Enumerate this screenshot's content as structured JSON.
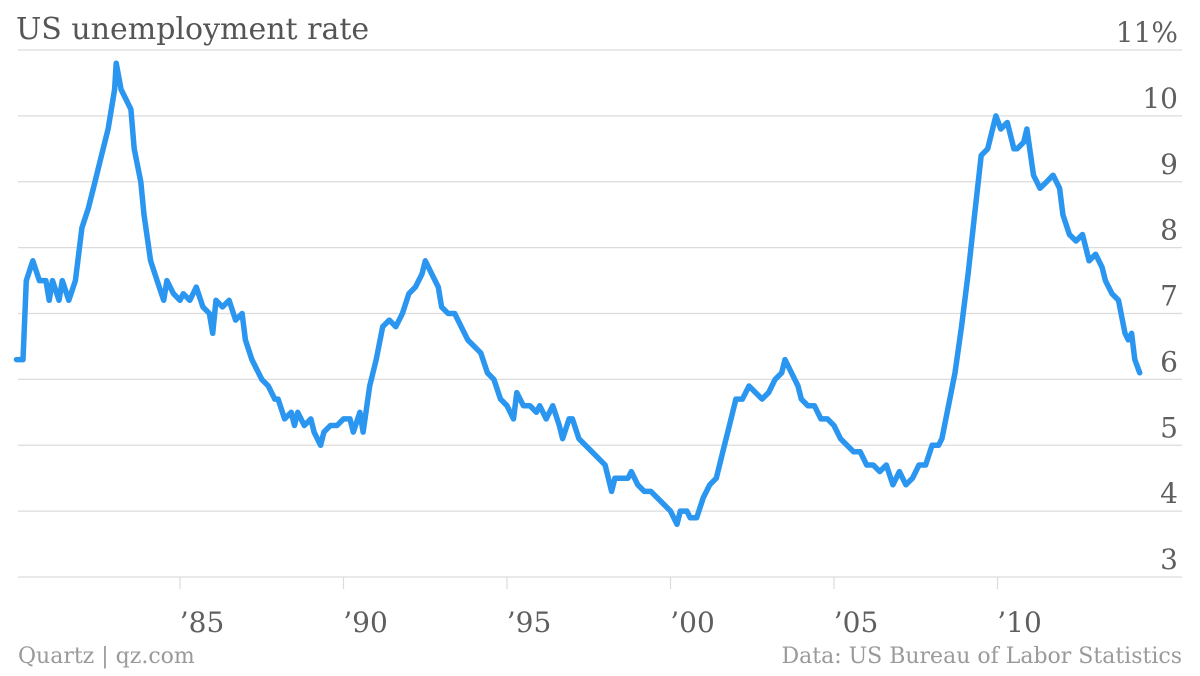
{
  "title": "US unemployment rate",
  "footer": {
    "source_left": "Quartz | qz.com",
    "source_right": "Data: US Bureau of Labor Statistics"
  },
  "colors": {
    "line": "#2A96F0",
    "grid": "#dcdcdc",
    "text": "#5f5f5f",
    "footer": "#9a9a9a"
  },
  "chart_data": {
    "type": "line",
    "title": "US unemployment rate",
    "xlabel": "",
    "ylabel": "",
    "xlim": [
      1980.0,
      2014.4
    ],
    "ylim": [
      3,
      11
    ],
    "grid": true,
    "y_ticks": [
      {
        "value": 11,
        "label": "11%"
      },
      {
        "value": 10,
        "label": "10"
      },
      {
        "value": 9,
        "label": "9"
      },
      {
        "value": 8,
        "label": "8"
      },
      {
        "value": 7,
        "label": "7"
      },
      {
        "value": 6,
        "label": "6"
      },
      {
        "value": 5,
        "label": "5"
      },
      {
        "value": 4,
        "label": "4"
      },
      {
        "value": 3,
        "label": "3"
      }
    ],
    "x_ticks": [
      {
        "value": 1985,
        "label": "’85"
      },
      {
        "value": 1990,
        "label": "’90"
      },
      {
        "value": 1995,
        "label": "’95"
      },
      {
        "value": 2000,
        "label": "’00"
      },
      {
        "value": 2005,
        "label": "’05"
      },
      {
        "value": 2010,
        "label": "’10"
      }
    ],
    "series": [
      {
        "points": [
          [
            1980.0,
            6.3
          ],
          [
            1980.2,
            6.3
          ],
          [
            1980.3,
            7.5
          ],
          [
            1980.5,
            7.8
          ],
          [
            1980.7,
            7.5
          ],
          [
            1980.9,
            7.5
          ],
          [
            1981.0,
            7.2
          ],
          [
            1981.1,
            7.5
          ],
          [
            1981.3,
            7.2
          ],
          [
            1981.4,
            7.5
          ],
          [
            1981.6,
            7.2
          ],
          [
            1981.8,
            7.5
          ],
          [
            1982.0,
            8.3
          ],
          [
            1982.2,
            8.6
          ],
          [
            1982.4,
            9.0
          ],
          [
            1982.6,
            9.4
          ],
          [
            1982.8,
            9.8
          ],
          [
            1983.0,
            10.4
          ],
          [
            1983.05,
            10.8
          ],
          [
            1983.2,
            10.4
          ],
          [
            1983.3,
            10.3
          ],
          [
            1983.5,
            10.1
          ],
          [
            1983.6,
            9.5
          ],
          [
            1983.8,
            9.0
          ],
          [
            1983.9,
            8.5
          ],
          [
            1984.1,
            7.8
          ],
          [
            1984.3,
            7.5
          ],
          [
            1984.5,
            7.2
          ],
          [
            1984.6,
            7.5
          ],
          [
            1984.8,
            7.3
          ],
          [
            1985.0,
            7.2
          ],
          [
            1985.1,
            7.3
          ],
          [
            1985.3,
            7.2
          ],
          [
            1985.4,
            7.3
          ],
          [
            1985.5,
            7.4
          ],
          [
            1985.7,
            7.1
          ],
          [
            1985.9,
            7.0
          ],
          [
            1986.0,
            6.7
          ],
          [
            1986.1,
            7.2
          ],
          [
            1986.3,
            7.1
          ],
          [
            1986.5,
            7.2
          ],
          [
            1986.7,
            6.9
          ],
          [
            1986.9,
            7.0
          ],
          [
            1987.0,
            6.6
          ],
          [
            1987.2,
            6.3
          ],
          [
            1987.5,
            6.0
          ],
          [
            1987.7,
            5.9
          ],
          [
            1987.9,
            5.7
          ],
          [
            1988.0,
            5.7
          ],
          [
            1988.2,
            5.4
          ],
          [
            1988.4,
            5.5
          ],
          [
            1988.5,
            5.3
          ],
          [
            1988.6,
            5.5
          ],
          [
            1988.8,
            5.3
          ],
          [
            1989.0,
            5.4
          ],
          [
            1989.1,
            5.2
          ],
          [
            1989.3,
            5.0
          ],
          [
            1989.4,
            5.2
          ],
          [
            1989.6,
            5.3
          ],
          [
            1989.8,
            5.3
          ],
          [
            1990.0,
            5.4
          ],
          [
            1990.2,
            5.4
          ],
          [
            1990.3,
            5.2
          ],
          [
            1990.5,
            5.5
          ],
          [
            1990.6,
            5.2
          ],
          [
            1990.8,
            5.9
          ],
          [
            1991.0,
            6.3
          ],
          [
            1991.2,
            6.8
          ],
          [
            1991.4,
            6.9
          ],
          [
            1991.6,
            6.8
          ],
          [
            1991.8,
            7.0
          ],
          [
            1992.0,
            7.3
          ],
          [
            1992.2,
            7.4
          ],
          [
            1992.4,
            7.6
          ],
          [
            1992.5,
            7.8
          ],
          [
            1992.7,
            7.6
          ],
          [
            1992.9,
            7.4
          ],
          [
            1993.0,
            7.1
          ],
          [
            1993.2,
            7.0
          ],
          [
            1993.4,
            7.0
          ],
          [
            1993.6,
            6.8
          ],
          [
            1993.8,
            6.6
          ],
          [
            1994.0,
            6.5
          ],
          [
            1994.2,
            6.4
          ],
          [
            1994.4,
            6.1
          ],
          [
            1994.6,
            6.0
          ],
          [
            1994.8,
            5.7
          ],
          [
            1995.0,
            5.6
          ],
          [
            1995.2,
            5.4
          ],
          [
            1995.3,
            5.8
          ],
          [
            1995.5,
            5.6
          ],
          [
            1995.7,
            5.6
          ],
          [
            1995.9,
            5.5
          ],
          [
            1996.0,
            5.6
          ],
          [
            1996.2,
            5.4
          ],
          [
            1996.4,
            5.6
          ],
          [
            1996.6,
            5.3
          ],
          [
            1996.7,
            5.1
          ],
          [
            1996.9,
            5.4
          ],
          [
            1997.0,
            5.4
          ],
          [
            1997.2,
            5.1
          ],
          [
            1997.4,
            5.0
          ],
          [
            1997.6,
            4.9
          ],
          [
            1997.8,
            4.8
          ],
          [
            1998.0,
            4.7
          ],
          [
            1998.2,
            4.3
          ],
          [
            1998.3,
            4.5
          ],
          [
            1998.5,
            4.5
          ],
          [
            1998.7,
            4.5
          ],
          [
            1998.8,
            4.6
          ],
          [
            1999.0,
            4.4
          ],
          [
            1999.2,
            4.3
          ],
          [
            1999.4,
            4.3
          ],
          [
            1999.6,
            4.2
          ],
          [
            1999.8,
            4.1
          ],
          [
            2000.0,
            4.0
          ],
          [
            2000.2,
            3.8
          ],
          [
            2000.3,
            4.0
          ],
          [
            2000.5,
            4.0
          ],
          [
            2000.6,
            3.9
          ],
          [
            2000.8,
            3.9
          ],
          [
            2001.0,
            4.2
          ],
          [
            2001.2,
            4.4
          ],
          [
            2001.4,
            4.5
          ],
          [
            2001.6,
            4.9
          ],
          [
            2001.8,
            5.3
          ],
          [
            2002.0,
            5.7
          ],
          [
            2002.2,
            5.7
          ],
          [
            2002.4,
            5.9
          ],
          [
            2002.6,
            5.8
          ],
          [
            2002.8,
            5.7
          ],
          [
            2003.0,
            5.8
          ],
          [
            2003.2,
            6.0
          ],
          [
            2003.4,
            6.1
          ],
          [
            2003.5,
            6.3
          ],
          [
            2003.7,
            6.1
          ],
          [
            2003.9,
            5.9
          ],
          [
            2004.0,
            5.7
          ],
          [
            2004.2,
            5.6
          ],
          [
            2004.4,
            5.6
          ],
          [
            2004.6,
            5.4
          ],
          [
            2004.8,
            5.4
          ],
          [
            2005.0,
            5.3
          ],
          [
            2005.2,
            5.1
          ],
          [
            2005.4,
            5.0
          ],
          [
            2005.6,
            4.9
          ],
          [
            2005.8,
            4.9
          ],
          [
            2006.0,
            4.7
          ],
          [
            2006.2,
            4.7
          ],
          [
            2006.4,
            4.6
          ],
          [
            2006.6,
            4.7
          ],
          [
            2006.8,
            4.4
          ],
          [
            2007.0,
            4.6
          ],
          [
            2007.2,
            4.4
          ],
          [
            2007.4,
            4.5
          ],
          [
            2007.6,
            4.7
          ],
          [
            2007.8,
            4.7
          ],
          [
            2008.0,
            5.0
          ],
          [
            2008.2,
            5.0
          ],
          [
            2008.3,
            5.1
          ],
          [
            2008.5,
            5.6
          ],
          [
            2008.7,
            6.1
          ],
          [
            2008.9,
            6.8
          ],
          [
            2009.1,
            7.6
          ],
          [
            2009.3,
            8.5
          ],
          [
            2009.5,
            9.4
          ],
          [
            2009.7,
            9.5
          ],
          [
            2009.9,
            9.9
          ],
          [
            2009.95,
            10.0
          ],
          [
            2010.1,
            9.8
          ],
          [
            2010.3,
            9.9
          ],
          [
            2010.5,
            9.5
          ],
          [
            2010.6,
            9.5
          ],
          [
            2010.8,
            9.6
          ],
          [
            2010.9,
            9.8
          ],
          [
            2011.1,
            9.1
          ],
          [
            2011.3,
            8.9
          ],
          [
            2011.5,
            9.0
          ],
          [
            2011.7,
            9.1
          ],
          [
            2011.9,
            8.9
          ],
          [
            2012.0,
            8.5
          ],
          [
            2012.2,
            8.2
          ],
          [
            2012.4,
            8.1
          ],
          [
            2012.6,
            8.2
          ],
          [
            2012.8,
            7.8
          ],
          [
            2013.0,
            7.9
          ],
          [
            2013.2,
            7.7
          ],
          [
            2013.3,
            7.5
          ],
          [
            2013.5,
            7.3
          ],
          [
            2013.7,
            7.2
          ],
          [
            2013.9,
            6.7
          ],
          [
            2014.0,
            6.6
          ],
          [
            2014.1,
            6.7
          ],
          [
            2014.2,
            6.3
          ],
          [
            2014.35,
            6.1
          ]
        ]
      }
    ]
  }
}
